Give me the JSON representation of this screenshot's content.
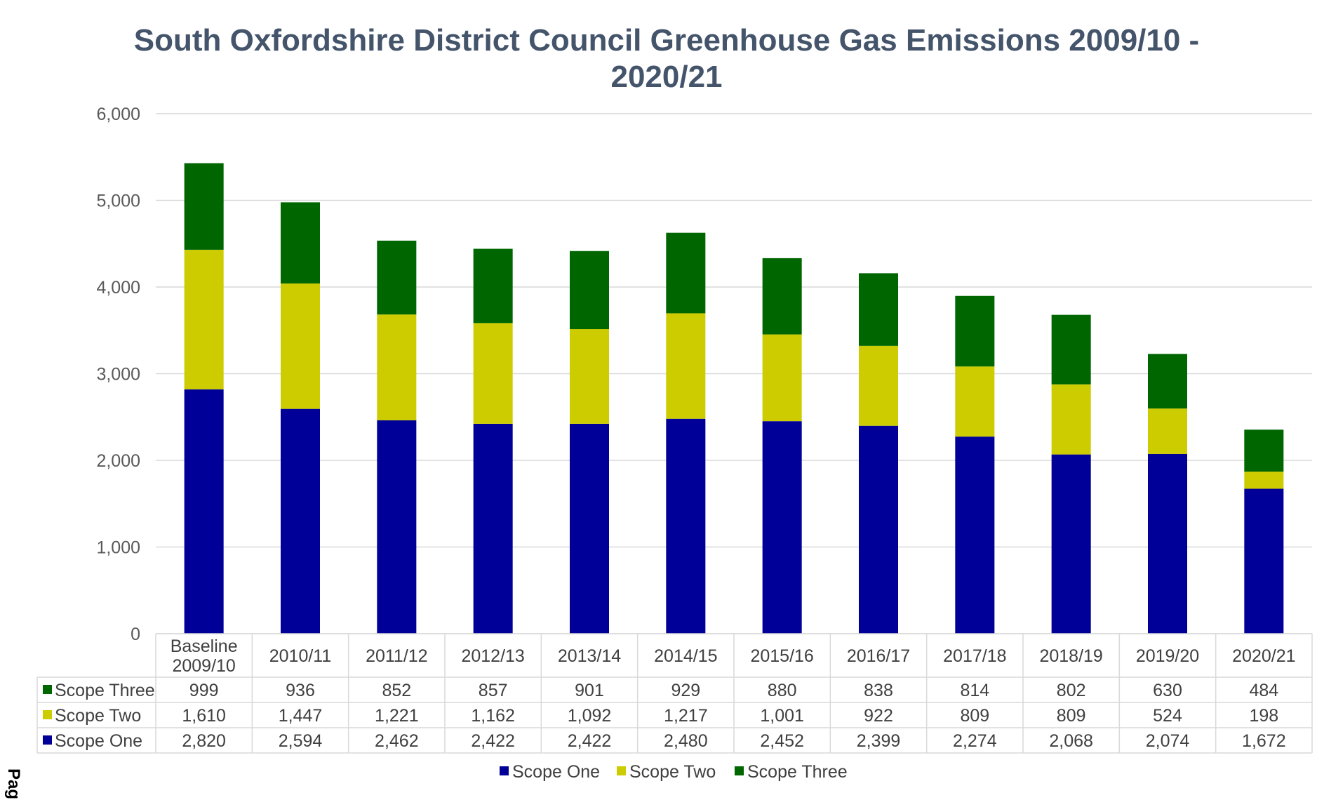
{
  "page": {
    "side_label": "Pag"
  },
  "colors": {
    "scope_one": "#000099",
    "scope_two": "#cccc00",
    "scope_three": "#006600"
  },
  "chart_data": {
    "type": "bar",
    "stacked": true,
    "title_lines": [
      "South Oxfordshire District Council Greenhouse Gas Emissions 2009/10 -",
      "2020/21"
    ],
    "categories": [
      "Baseline 2009/10",
      "2010/11",
      "2011/12",
      "2012/13",
      "2013/14",
      "2014/15",
      "2015/16",
      "2016/17",
      "2017/18",
      "2018/19",
      "2019/20",
      "2020/21"
    ],
    "category_lines": [
      [
        "Baseline",
        "2009/10"
      ],
      [
        "2010/11"
      ],
      [
        "2011/12"
      ],
      [
        "2012/13"
      ],
      [
        "2013/14"
      ],
      [
        "2014/15"
      ],
      [
        "2015/16"
      ],
      [
        "2016/17"
      ],
      [
        "2017/18"
      ],
      [
        "2018/19"
      ],
      [
        "2019/20"
      ],
      [
        "2020/21"
      ]
    ],
    "series": [
      {
        "name": "Scope One",
        "color": "#000099",
        "values": [
          2820,
          2594,
          2462,
          2422,
          2422,
          2480,
          2452,
          2399,
          2274,
          2068,
          2074,
          1672
        ],
        "labels": [
          "2,820",
          "2,594",
          "2,462",
          "2,422",
          "2,422",
          "2,480",
          "2,452",
          "2,399",
          "2,274",
          "2,068",
          "2,074",
          "1,672"
        ]
      },
      {
        "name": "Scope Two",
        "color": "#cccc00",
        "values": [
          1610,
          1447,
          1221,
          1162,
          1092,
          1217,
          1001,
          922,
          809,
          809,
          524,
          198
        ],
        "labels": [
          "1,610",
          "1,447",
          "1,221",
          "1,162",
          "1,092",
          "1,217",
          "1,001",
          "922",
          "809",
          "809",
          "524",
          "198"
        ]
      },
      {
        "name": "Scope Three",
        "color": "#006600",
        "values": [
          999,
          936,
          852,
          857,
          901,
          929,
          880,
          838,
          814,
          802,
          630,
          484
        ],
        "labels": [
          "999",
          "936",
          "852",
          "857",
          "901",
          "929",
          "880",
          "838",
          "814",
          "802",
          "630",
          "484"
        ]
      }
    ],
    "table_row_order": [
      "Scope Three",
      "Scope Two",
      "Scope One"
    ],
    "ylim": [
      0,
      6000
    ],
    "yticks": [
      0,
      1000,
      2000,
      3000,
      4000,
      5000,
      6000
    ],
    "ytick_labels": [
      "0",
      "1,000",
      "2,000",
      "3,000",
      "4,000",
      "5,000",
      "6,000"
    ],
    "grid": true,
    "legend_position": "bottom",
    "data_table": true
  }
}
